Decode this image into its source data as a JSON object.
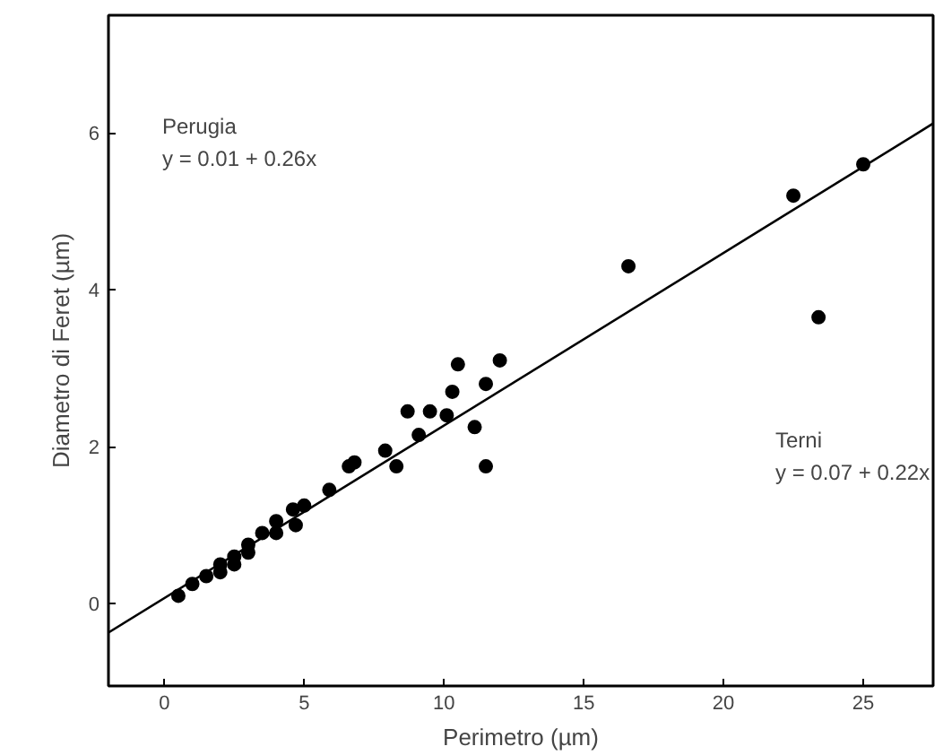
{
  "chart_data": {
    "type": "scatter",
    "xlabel": "Perimetro (µm)",
    "ylabel": "Diametro di Feret (µm)",
    "xlim": [
      -2,
      27.5
    ],
    "ylim": [
      -1.05,
      7.5
    ],
    "xticks": [
      0,
      5,
      10,
      15,
      20,
      25
    ],
    "yticks": [
      0,
      2,
      4,
      6
    ],
    "grid": false,
    "annotations": [
      "Perugia",
      "y = 0.01 + 0.26x",
      "Terni",
      "y = 0.07 + 0.22x"
    ],
    "series": [
      {
        "color": "#000000",
        "marker": "circle",
        "x": [
          25,
          22.5,
          16.6,
          23.4,
          10.5,
          12.0,
          11.5,
          11.1,
          11.5,
          10.3,
          9.5,
          8.3,
          9.1,
          10.1,
          7.9,
          6.6,
          6.8,
          5.9,
          4.7,
          4.6,
          5.0,
          0.5,
          1.0,
          2.0,
          2.5,
          3.0,
          4.0
        ],
        "values": [
          5.6,
          5.2,
          4.3,
          3.65,
          3.05,
          3.1,
          2.8,
          2.25,
          1.75,
          2.7,
          2.45,
          1.75,
          2.15,
          2.4,
          1.95,
          1.75,
          1.8,
          1.45,
          1.0,
          1.2,
          1.25,
          0.1,
          null,
          0.4,
          0.5,
          0.65,
          0.9
        ]
      },
      {
        "color": "#000000",
        "marker": "circle",
        "x": [
          1.0,
          1.5,
          2.0,
          2.5,
          3.0,
          3.5,
          4.0,
          8.7
        ],
        "values": [
          0.25,
          0.35,
          0.5,
          0.6,
          0.75,
          0.9,
          1.05,
          2.45
        ]
      },
      {
        "type": "line",
        "color": "#000000",
        "x": [
          -2,
          27.5
        ],
        "values": [
          -0.37,
          6.12
        ]
      }
    ]
  }
}
